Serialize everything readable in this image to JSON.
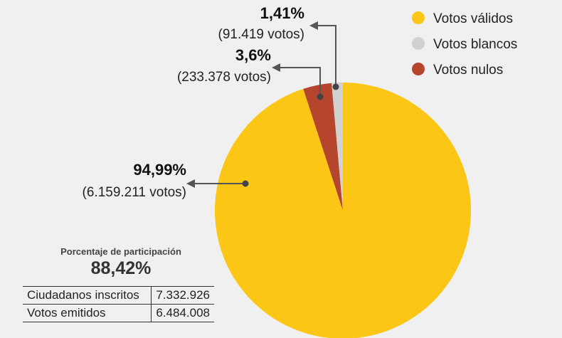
{
  "chart_data": {
    "type": "pie",
    "title": "",
    "slices": [
      {
        "label": "Votos válidos",
        "value": 94.99,
        "pct_label": "94,99%",
        "votes_label": "(6.159.211 votos)",
        "color": "#fbc616"
      },
      {
        "label": "Votos blancos",
        "value": 1.41,
        "pct_label": "1,41%",
        "votes_label": "(91.419 votos)",
        "color": "#d1d1cf"
      },
      {
        "label": "Votos nulos",
        "value": 3.6,
        "pct_label": "3,6%",
        "votes_label": "(233.378 votos)",
        "color": "#b5452c"
      }
    ],
    "legend_position": "top-right"
  },
  "participation": {
    "title": "Porcentaje de participación",
    "value": "88,42%",
    "rows": [
      {
        "name": "Ciudadanos inscritos",
        "value": "7.332.926"
      },
      {
        "name": "Votos emitidos",
        "value": "6.484.008"
      }
    ]
  }
}
